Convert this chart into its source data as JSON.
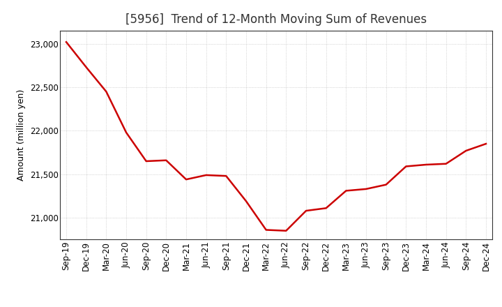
{
  "title": "[5956]  Trend of 12-Month Moving Sum of Revenues",
  "ylabel": "Amount (million yen)",
  "line_color": "#CC0000",
  "line_width": 1.8,
  "background_color": "#FFFFFF",
  "grid_color": "#999999",
  "xlabels": [
    "Sep-19",
    "Dec-19",
    "Mar-20",
    "Jun-20",
    "Sep-20",
    "Dec-20",
    "Mar-21",
    "Jun-21",
    "Sep-21",
    "Dec-21",
    "Mar-22",
    "Jun-22",
    "Sep-22",
    "Dec-22",
    "Mar-23",
    "Jun-23",
    "Sep-23",
    "Dec-23",
    "Mar-24",
    "Jun-24",
    "Sep-24",
    "Dec-24"
  ],
  "values": [
    23020,
    22730,
    22450,
    21980,
    21650,
    21660,
    21440,
    21490,
    21480,
    21190,
    20860,
    20850,
    21080,
    21110,
    21310,
    21330,
    21380,
    21590,
    21610,
    21620,
    21770,
    21850
  ],
  "ylim": [
    20750,
    23150
  ],
  "yticks": [
    21000,
    21500,
    22000,
    22500,
    23000
  ],
  "title_fontsize": 12,
  "ylabel_fontsize": 9,
  "tick_fontsize": 8.5
}
